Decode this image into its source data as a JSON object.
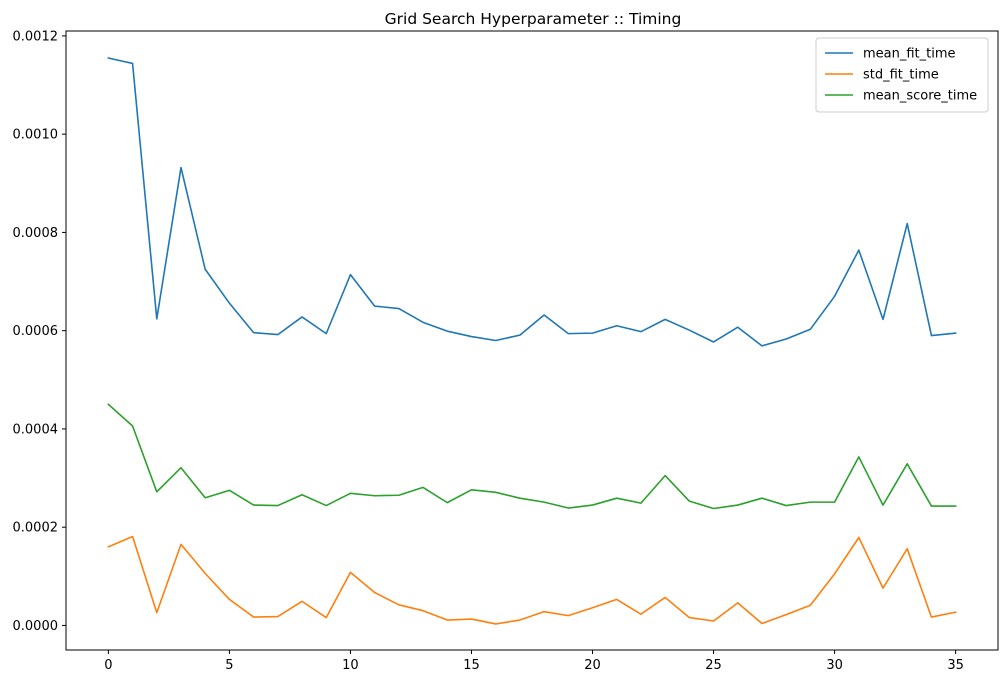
{
  "chart_data": {
    "type": "line",
    "title": "Grid Search Hyperparameter :: Timing",
    "xlabel": "",
    "ylabel": "",
    "xlim": [
      -1.75,
      36.75
    ],
    "ylim": [
      -5e-05,
      0.00121
    ],
    "xticks": [
      0,
      5,
      10,
      15,
      20,
      25,
      30,
      35
    ],
    "xtick_labels": [
      "0",
      "5",
      "10",
      "15",
      "20",
      "25",
      "30",
      "35"
    ],
    "yticks": [
      0,
      0.0002,
      0.0004,
      0.0006,
      0.0008,
      0.001,
      0.0012
    ],
    "ytick_labels": [
      "0.0000",
      "0.0002",
      "0.0004",
      "0.0006",
      "0.0008",
      "0.0010",
      "0.0012"
    ],
    "grid": false,
    "legend_position": "top-right",
    "x": [
      0,
      1,
      2,
      3,
      4,
      5,
      6,
      7,
      8,
      9,
      10,
      11,
      12,
      13,
      14,
      15,
      16,
      17,
      18,
      19,
      20,
      21,
      22,
      23,
      24,
      25,
      26,
      27,
      28,
      29,
      30,
      31,
      32,
      33,
      34,
      35
    ],
    "series": [
      {
        "name": "mean_fit_time",
        "color": "#1f77b4",
        "values": [
          0.001155,
          0.001144,
          0.000624,
          0.000932,
          0.000725,
          0.000656,
          0.000596,
          0.000592,
          0.000628,
          0.000594,
          0.000714,
          0.00065,
          0.000645,
          0.000617,
          0.000599,
          0.000588,
          0.00058,
          0.000591,
          0.000632,
          0.000594,
          0.000595,
          0.00061,
          0.000598,
          0.000623,
          0.000601,
          0.000577,
          0.000607,
          0.000569,
          0.000583,
          0.000603,
          0.00067,
          0.000764,
          0.000623,
          0.000818,
          0.00059,
          0.000595
        ]
      },
      {
        "name": "std_fit_time",
        "color": "#ff7f0e",
        "values": [
          0.00016,
          0.000181,
          2.6e-05,
          0.000165,
          0.000106,
          5.3e-05,
          1.7e-05,
          1.8e-05,
          4.9e-05,
          1.6e-05,
          0.000108,
          6.7e-05,
          4.2e-05,
          3e-05,
          1.1e-05,
          1.3e-05,
          3e-06,
          1.1e-05,
          2.8e-05,
          2e-05,
          3.6e-05,
          5.3e-05,
          2.3e-05,
          5.7e-05,
          1.6e-05,
          9e-06,
          4.6e-05,
          4e-06,
          2.2e-05,
          4.1e-05,
          0.000105,
          0.000179,
          7.6e-05,
          0.000156,
          1.7e-05,
          2.7e-05
        ]
      },
      {
        "name": "mean_score_time",
        "color": "#2ca02c",
        "values": [
          0.00045,
          0.000406,
          0.000272,
          0.000321,
          0.00026,
          0.000275,
          0.000245,
          0.000244,
          0.000266,
          0.000244,
          0.000269,
          0.000264,
          0.000265,
          0.000281,
          0.00025,
          0.000276,
          0.000271,
          0.000259,
          0.000251,
          0.000239,
          0.000245,
          0.000259,
          0.000249,
          0.000305,
          0.000253,
          0.000238,
          0.000245,
          0.000259,
          0.000244,
          0.000251,
          0.000251,
          0.000343,
          0.000245,
          0.000329,
          0.000243,
          0.000243
        ]
      }
    ]
  }
}
